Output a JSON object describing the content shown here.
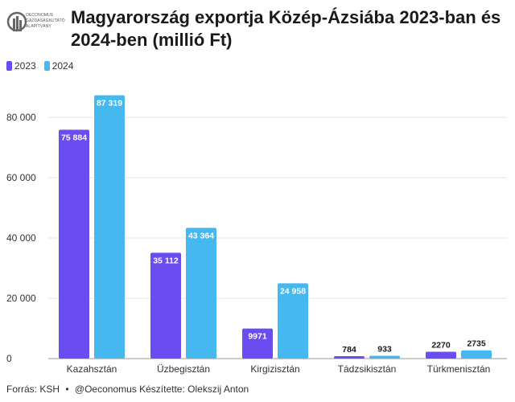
{
  "logo": {
    "lines": [
      "OECONOMUS",
      "GAZDASÁGKUTATÓ",
      "ALAPÍTVÁNY"
    ]
  },
  "chart_data": {
    "type": "bar",
    "title": "Magyarország exportja Közép-Ázsiába 2023-ban és 2024-ben (millió Ft)",
    "categories": [
      "Kazahsztán",
      "Üzbegisztán",
      "Kirgizisztán",
      "Tádzsikisztán",
      "Türkmenisztán"
    ],
    "series": [
      {
        "name": "2023",
        "color": "#6a4cf0",
        "values": [
          75884,
          35112,
          9971,
          784,
          2270
        ],
        "labels": [
          "75 884",
          "35 112",
          "9971",
          "784",
          "2270"
        ]
      },
      {
        "name": "2024",
        "color": "#45b8f0",
        "values": [
          87319,
          43364,
          24958,
          933,
          2735
        ],
        "labels": [
          "87 319",
          "43 364",
          "24 958",
          "933",
          "2735"
        ]
      }
    ],
    "ylim": [
      0,
      90000
    ],
    "yticks": [
      0,
      20000,
      40000,
      60000,
      80000
    ],
    "ytick_labels": [
      "0",
      "20 000",
      "40 000",
      "60 000",
      "80 000"
    ],
    "xlabel": "",
    "ylabel": "",
    "grid": true,
    "legend_position": "top-left"
  },
  "footer": {
    "source": "Forrás: KSH",
    "separator": "•",
    "credit": "@Oeconomus Készítette: Olekszij Anton"
  }
}
